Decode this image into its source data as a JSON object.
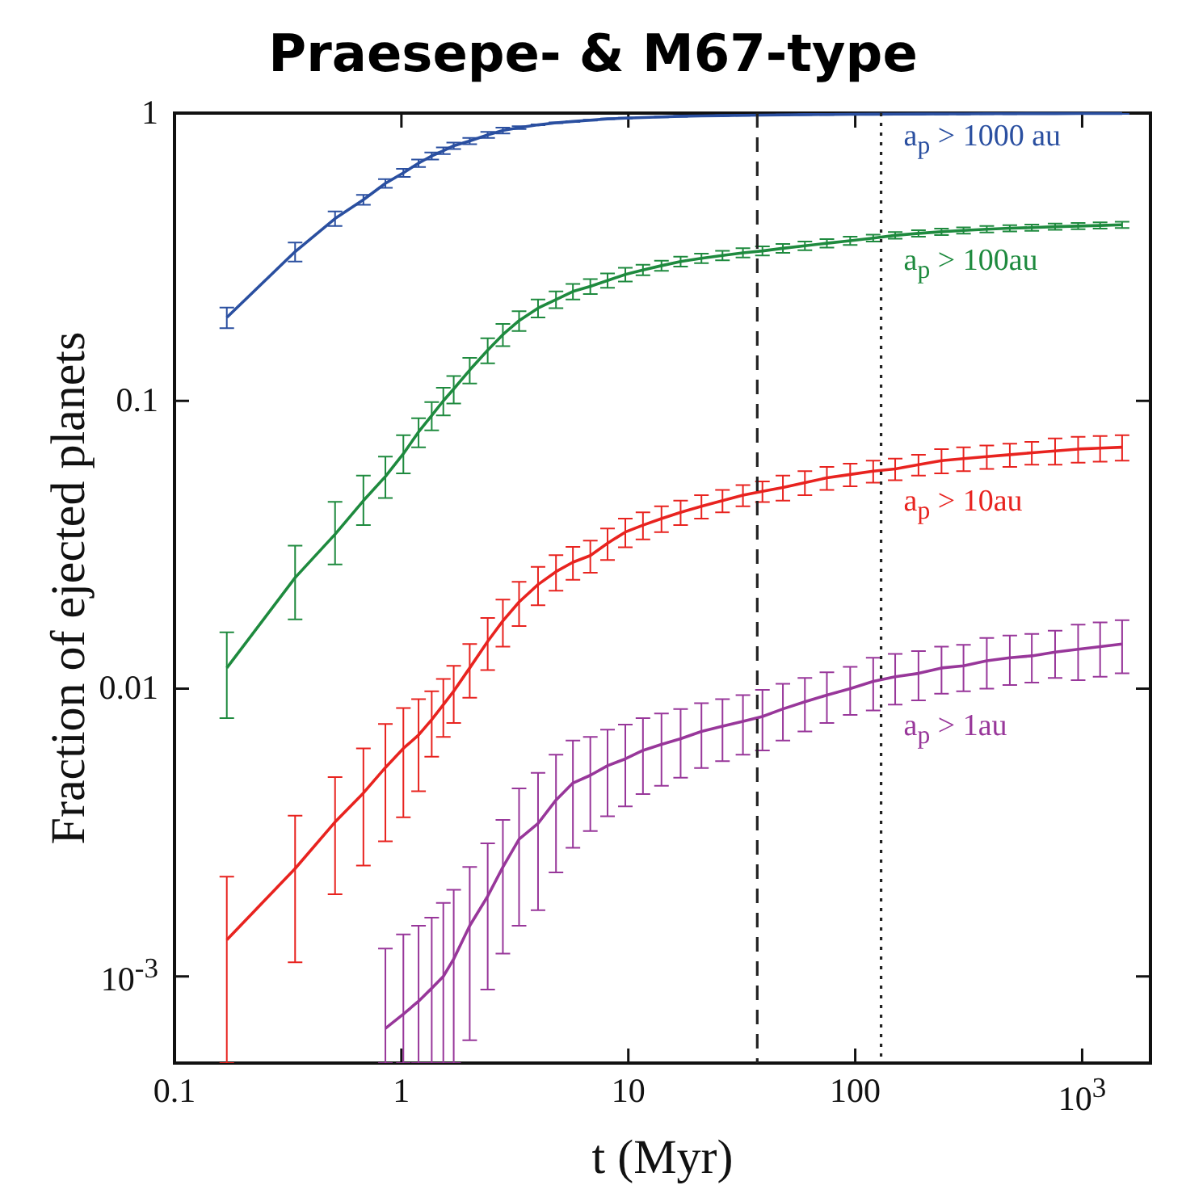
{
  "chart_data": {
    "type": "line",
    "title": "Praesepe- & M67-type",
    "xlabel": "t (Myr)",
    "ylabel": "Fraction of ejected planets",
    "log": "xy",
    "grid": false,
    "legend": false,
    "marker": "none",
    "line_style": "solid",
    "x": [
      0.17,
      0.34,
      0.51,
      0.68,
      0.85,
      1.02,
      1.19,
      1.36,
      1.53,
      1.7,
      2.0,
      2.4,
      2.8,
      3.3,
      4,
      4.8,
      5.7,
      6.8,
      8.1,
      9.7,
      11.6,
      14,
      17,
      21,
      26,
      32,
      39,
      48,
      60,
      75,
      95,
      120,
      150,
      190,
      240,
      300,
      380,
      480,
      600,
      760,
      960,
      1200,
      1500
    ],
    "xlim": [
      0.1,
      2000
    ],
    "xticks": [
      0.1,
      1,
      10,
      100,
      {
        "value": 1000,
        "label": "10$^{3}$"
      }
    ],
    "ylim": [
      0.0005,
      1
    ],
    "yticks": [
      {
        "value": 0.001,
        "label": "10$^{-3}$"
      },
      0.01,
      0.1,
      1
    ],
    "series": [
      {
        "name": "a$_{p}$ > 1000 au",
        "color": "#2a4fa0",
        "values": [
          0.195,
          0.33,
          0.43,
          0.5,
          0.57,
          0.62,
          0.67,
          0.71,
          0.74,
          0.77,
          0.8,
          0.84,
          0.87,
          0.89,
          0.91,
          0.925,
          0.935,
          0.945,
          0.955,
          0.96,
          0.965,
          0.97,
          0.975,
          0.978,
          0.98,
          0.982,
          0.984,
          0.986,
          0.988,
          0.989,
          0.99,
          0.991,
          0.992,
          0.993,
          0.994,
          0.994,
          0.995,
          0.995,
          0.996,
          0.996,
          0.997,
          0.997,
          0.997
        ],
        "errors": [
          [
            0.179,
            0.211
          ],
          0.025,
          0.025,
          0.02,
          0.02,
          0.02,
          0.02,
          0.02,
          0.02,
          0.02,
          0.02,
          0.02,
          0.02,
          0.01,
          0.003,
          0.003,
          0.003,
          0.003,
          0.003,
          0.003,
          0.003,
          0.003,
          0.003,
          0.003,
          0.003,
          0.003,
          0.003,
          0.003,
          0.003,
          0.003,
          0.003,
          0.003,
          0.003,
          0.003,
          0.003,
          0.003,
          0.003,
          0.003,
          0.003,
          0.003,
          0.003,
          0.003,
          0.003
        ]
      },
      {
        "name": "a$_{p}$ > 100au",
        "color": "#1e8a3e",
        "values": [
          0.0118,
          0.0243,
          0.0344,
          0.045,
          0.0546,
          0.0655,
          0.078,
          0.089,
          0.1,
          0.11,
          0.128,
          0.15,
          0.17,
          0.19,
          0.21,
          0.225,
          0.24,
          0.25,
          0.262,
          0.275,
          0.285,
          0.295,
          0.305,
          0.313,
          0.32,
          0.327,
          0.332,
          0.339,
          0.346,
          0.353,
          0.36,
          0.368,
          0.376,
          0.382,
          0.387,
          0.391,
          0.395,
          0.398,
          0.4,
          0.403,
          0.405,
          0.407,
          0.409
        ],
        "errors": [
          [
            0.0079,
            0.0157
          ],
          [
            0.0174,
            0.0314
          ],
          [
            0.027,
            0.0446
          ],
          [
            0.037,
            0.055
          ],
          [
            0.046,
            0.064
          ],
          [
            0.056,
            0.076
          ],
          0.009,
          0.01,
          0.011,
          0.012,
          0.013,
          0.015,
          0.015,
          0.015,
          0.015,
          0.015,
          0.015,
          0.015,
          0.015,
          0.015,
          0.012,
          0.012,
          0.012,
          0.012,
          0.012,
          0.012,
          0.012,
          0.012,
          0.012,
          0.012,
          0.012,
          0.01,
          0.01,
          0.01,
          0.01,
          0.01,
          0.01,
          0.01,
          0.01,
          0.01,
          0.01,
          0.01,
          0.01
        ]
      },
      {
        "name": "a$_{p}$ > 10au",
        "color": "#e8231f",
        "values": [
          0.00134,
          0.00237,
          0.00344,
          0.00434,
          0.00532,
          0.0062,
          0.0069,
          0.0078,
          0.0088,
          0.0098,
          0.0118,
          0.0146,
          0.0172,
          0.02,
          0.023,
          0.0255,
          0.0275,
          0.029,
          0.032,
          0.035,
          0.037,
          0.039,
          0.041,
          0.043,
          0.045,
          0.047,
          0.0485,
          0.05,
          0.052,
          0.054,
          0.0555,
          0.057,
          0.058,
          0.06,
          0.062,
          0.063,
          0.064,
          0.065,
          0.066,
          0.067,
          0.068,
          0.0685,
          0.069
        ],
        "errors": [
          [
            0.0005,
            0.00222
          ],
          [
            0.00112,
            0.00362
          ],
          [
            0.00193,
            0.00493
          ],
          [
            0.00243,
            0.0062
          ],
          [
            0.00295,
            0.00754
          ],
          [
            0.00357,
            0.00857
          ],
          [
            0.0044,
            0.0092
          ],
          0.002,
          0.002,
          0.0022,
          0.0025,
          0.003,
          0.0032,
          0.0035,
          0.0035,
          0.0036,
          0.0036,
          0.0037,
          0.004,
          0.004,
          0.004,
          0.004,
          0.004,
          0.004,
          0.004,
          0.004,
          0.004,
          0.005,
          0.005,
          0.005,
          0.005,
          0.005,
          0.005,
          0.005,
          0.006,
          0.006,
          0.006,
          0.006,
          0.006,
          0.007,
          0.007,
          0.007,
          0.007
        ]
      },
      {
        "name": "a$_{p}$ > 1au",
        "color": "#98379a",
        "values": [
          null,
          null,
          null,
          null,
          0.00066,
          0.00074,
          0.00082,
          0.00091,
          0.001,
          0.00115,
          0.0015,
          0.0019,
          0.0024,
          0.003,
          0.0034,
          0.0041,
          0.0047,
          0.005,
          0.0054,
          0.0057,
          0.0061,
          0.0064,
          0.0067,
          0.0071,
          0.0074,
          0.0077,
          0.008,
          0.0085,
          0.009,
          0.0095,
          0.01,
          0.0106,
          0.011,
          0.0113,
          0.0118,
          0.012,
          0.0125,
          0.0128,
          0.013,
          0.0134,
          0.0137,
          0.014,
          0.0143
        ],
        "errors": [
          null,
          null,
          null,
          null,
          [
            0.0005,
            0.00125
          ],
          [
            0.0005,
            0.0014
          ],
          [
            0.0005,
            0.0015
          ],
          [
            0.0005,
            0.0016
          ],
          [
            0.0005,
            0.0018
          ],
          [
            0.0005,
            0.002
          ],
          [
            0.0006,
            0.0024
          ],
          [
            0.0009,
            0.0029
          ],
          [
            0.0012,
            0.0035
          ],
          0.0015,
          0.0017,
          0.0018,
          0.0019,
          0.0018,
          0.0018,
          0.0018,
          0.0018,
          0.0018,
          0.0018,
          0.0018,
          0.0018,
          0.0018,
          0.0019,
          0.0019,
          0.0019,
          0.0019,
          0.0019,
          0.0022,
          0.0022,
          0.0022,
          0.0022,
          0.0022,
          0.0025,
          0.0025,
          0.0025,
          0.0025,
          0.003,
          0.003,
          0.003
        ]
      }
    ],
    "ref_lines": [
      {
        "axis": "x",
        "value": 37,
        "color": "#222222",
        "line_style": "dashed"
      },
      {
        "axis": "x",
        "value": 130,
        "color": "#222222",
        "line_style": "dotted"
      }
    ]
  }
}
